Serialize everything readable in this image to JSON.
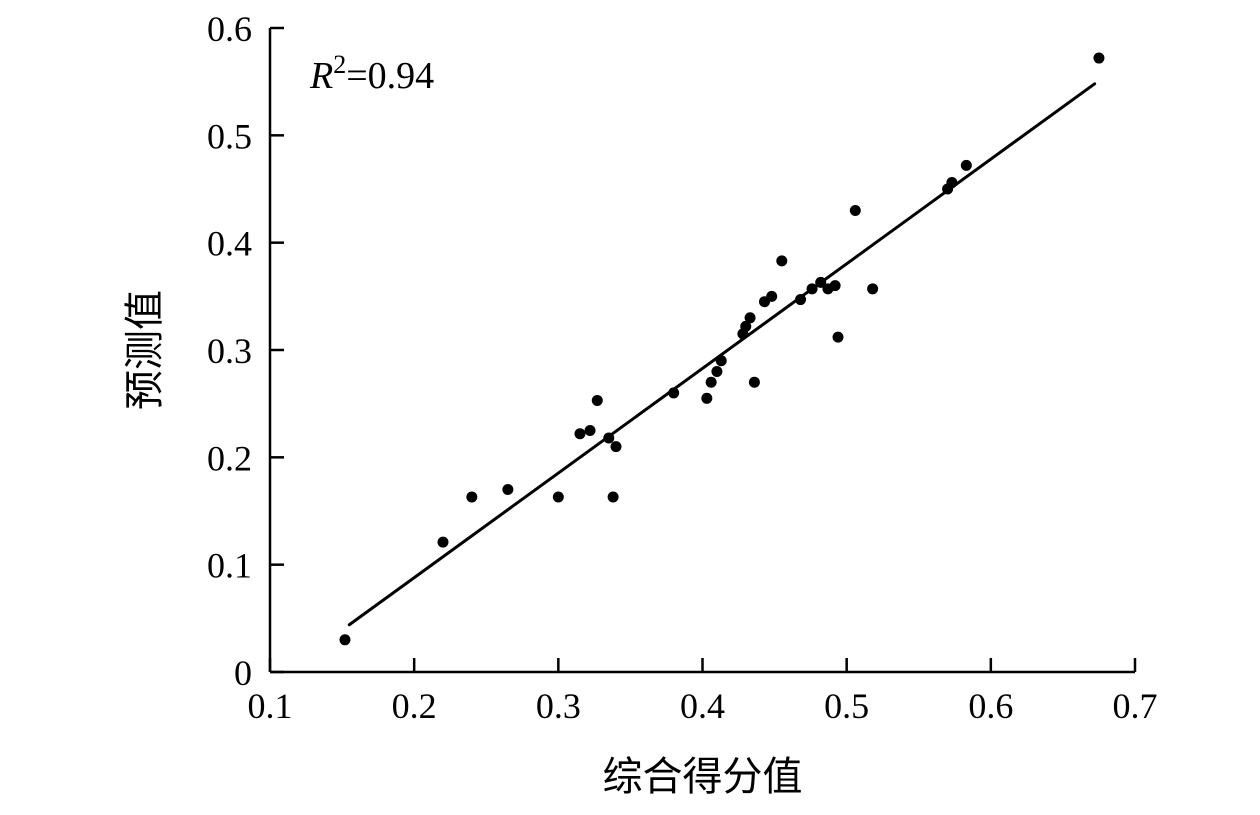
{
  "figure": {
    "background": "#ffffff",
    "foreground": "#000000"
  },
  "chart_data": {
    "type": "scatter",
    "title": "",
    "xlabel": "综合得分值",
    "ylabel": "预测值",
    "annotation": "R²=0.94",
    "xlim": [
      0.1,
      0.7
    ],
    "ylim": [
      0,
      0.6
    ],
    "x_ticks": [
      0.1,
      0.2,
      0.3,
      0.4,
      0.5,
      0.6,
      0.7
    ],
    "x_tick_labels": [
      "0.1",
      "0.2",
      "0.3",
      "0.4",
      "0.5",
      "0.6",
      "0.7"
    ],
    "y_ticks": [
      0,
      0.1,
      0.2,
      0.3,
      0.4,
      0.5,
      0.6
    ],
    "y_tick_labels": [
      "0",
      "0.1",
      "0.2",
      "0.3",
      "0.4",
      "0.5",
      "0.6"
    ],
    "grid": false,
    "legend": "none",
    "point_color": "#000000",
    "line_color": "#000000",
    "points": [
      [
        0.152,
        0.03
      ],
      [
        0.22,
        0.121
      ],
      [
        0.24,
        0.163
      ],
      [
        0.265,
        0.17
      ],
      [
        0.3,
        0.163
      ],
      [
        0.315,
        0.222
      ],
      [
        0.322,
        0.225
      ],
      [
        0.327,
        0.253
      ],
      [
        0.335,
        0.218
      ],
      [
        0.34,
        0.21
      ],
      [
        0.338,
        0.163
      ],
      [
        0.38,
        0.26
      ],
      [
        0.403,
        0.255
      ],
      [
        0.406,
        0.27
      ],
      [
        0.41,
        0.28
      ],
      [
        0.413,
        0.29
      ],
      [
        0.428,
        0.315
      ],
      [
        0.43,
        0.322
      ],
      [
        0.433,
        0.33
      ],
      [
        0.436,
        0.27
      ],
      [
        0.443,
        0.345
      ],
      [
        0.448,
        0.35
      ],
      [
        0.455,
        0.383
      ],
      [
        0.468,
        0.347
      ],
      [
        0.476,
        0.357
      ],
      [
        0.482,
        0.363
      ],
      [
        0.487,
        0.357
      ],
      [
        0.492,
        0.36
      ],
      [
        0.494,
        0.312
      ],
      [
        0.506,
        0.43
      ],
      [
        0.518,
        0.357
      ],
      [
        0.57,
        0.45
      ],
      [
        0.573,
        0.456
      ],
      [
        0.583,
        0.472
      ],
      [
        0.675,
        0.572
      ]
    ],
    "fit_line": {
      "x1": 0.155,
      "y1": 0.044,
      "x2": 0.672,
      "y2": 0.548
    }
  }
}
